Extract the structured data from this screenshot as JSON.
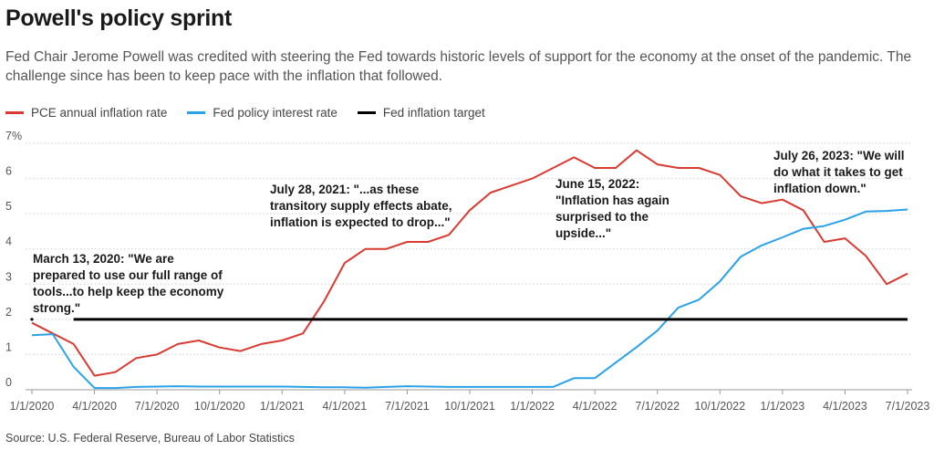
{
  "title": "Powell's policy sprint",
  "subtitle": "Fed Chair Jerome Powell was credited with steering the Fed towards historic levels of support for the economy at the onset of the pandemic. The challenge since has been to keep pace with the inflation that followed.",
  "source": "Source: U.S. Federal Reserve, Bureau of Labor Statistics",
  "colors": {
    "pce": "#d93a32",
    "rate": "#2aa2ea",
    "target": "#000000",
    "grid": "#cfcfcf"
  },
  "chart_data": {
    "type": "line",
    "title": "Powell's policy sprint",
    "xlabel": "",
    "ylabel": "",
    "ylim": [
      0,
      7
    ],
    "y_ticks": [
      "0",
      "1",
      "2",
      "3",
      "4",
      "5",
      "6",
      "7%"
    ],
    "x_ticks": [
      "1/1/2020",
      "4/1/2020",
      "7/1/2020",
      "10/1/2020",
      "1/1/2021",
      "4/1/2021",
      "7/1/2021",
      "10/1/2021",
      "1/1/2022",
      "4/1/2022",
      "7/1/2022",
      "10/1/2022",
      "1/1/2023",
      "4/1/2023",
      "7/1/2023"
    ],
    "grid": "horizontal",
    "legend_position": "top-left",
    "series": [
      {
        "name": "PCE annual inflation rate",
        "x": [
          "2020-01",
          "2020-02",
          "2020-03",
          "2020-04",
          "2020-05",
          "2020-06",
          "2020-07",
          "2020-08",
          "2020-09",
          "2020-10",
          "2020-11",
          "2020-12",
          "2021-01",
          "2021-02",
          "2021-03",
          "2021-04",
          "2021-05",
          "2021-06",
          "2021-07",
          "2021-08",
          "2021-09",
          "2021-10",
          "2021-11",
          "2021-12",
          "2022-01",
          "2022-02",
          "2022-03",
          "2022-04",
          "2022-05",
          "2022-06",
          "2022-07",
          "2022-08",
          "2022-09",
          "2022-10",
          "2022-11",
          "2022-12",
          "2023-01",
          "2023-02",
          "2023-03",
          "2023-04",
          "2023-05",
          "2023-06",
          "2023-07"
        ],
        "values": [
          1.9,
          1.6,
          1.3,
          0.4,
          0.5,
          0.9,
          1.0,
          1.3,
          1.4,
          1.2,
          1.1,
          1.3,
          1.4,
          1.6,
          2.5,
          3.6,
          4.0,
          4.0,
          4.2,
          4.2,
          4.4,
          5.1,
          5.6,
          5.8,
          6.0,
          6.3,
          6.6,
          6.3,
          6.3,
          6.8,
          6.4,
          6.3,
          6.3,
          6.1,
          5.5,
          5.3,
          5.4,
          5.1,
          4.2,
          4.3,
          3.8,
          3.0,
          3.3
        ]
      },
      {
        "name": "Fed policy interest rate",
        "x": [
          "2020-01",
          "2020-02",
          "2020-03",
          "2020-04",
          "2020-05",
          "2020-06",
          "2020-07",
          "2020-08",
          "2020-09",
          "2020-10",
          "2020-11",
          "2020-12",
          "2021-01",
          "2021-02",
          "2021-03",
          "2021-04",
          "2021-05",
          "2021-06",
          "2021-07",
          "2021-08",
          "2021-09",
          "2021-10",
          "2021-11",
          "2021-12",
          "2022-01",
          "2022-02",
          "2022-03",
          "2022-04",
          "2022-05",
          "2022-06",
          "2022-07",
          "2022-08",
          "2022-09",
          "2022-10",
          "2022-11",
          "2022-12",
          "2023-01",
          "2023-02",
          "2023-03",
          "2023-04",
          "2023-05",
          "2023-06",
          "2023-07"
        ],
        "values": [
          1.55,
          1.58,
          0.65,
          0.05,
          0.05,
          0.08,
          0.09,
          0.1,
          0.09,
          0.09,
          0.09,
          0.09,
          0.09,
          0.08,
          0.07,
          0.07,
          0.06,
          0.08,
          0.1,
          0.09,
          0.08,
          0.08,
          0.08,
          0.08,
          0.08,
          0.08,
          0.33,
          0.33,
          0.77,
          1.21,
          1.68,
          2.33,
          2.56,
          3.08,
          3.78,
          4.1,
          4.33,
          4.57,
          4.65,
          4.83,
          5.06,
          5.08,
          5.12
        ]
      },
      {
        "name": "Fed inflation target",
        "x": [
          "2020-03",
          "2023-07"
        ],
        "values": [
          2,
          2
        ]
      }
    ],
    "annotations": [
      {
        "lines": [
          "March 13, 2020: \"We are",
          "prepared to use our full range of",
          "tools...to help keep the economy",
          "strong.\""
        ]
      },
      {
        "lines": [
          "July 28, 2021: \"...as these",
          "transitory supply effects abate,",
          "inflation is expected to drop...\""
        ]
      },
      {
        "lines": [
          "June 15, 2022:",
          "\"Inflation has again",
          "surprised to the",
          "upside...\""
        ]
      },
      {
        "lines": [
          "July 26, 2023: \"We will",
          "do what it takes to get",
          "inflation down.\""
        ]
      }
    ]
  }
}
